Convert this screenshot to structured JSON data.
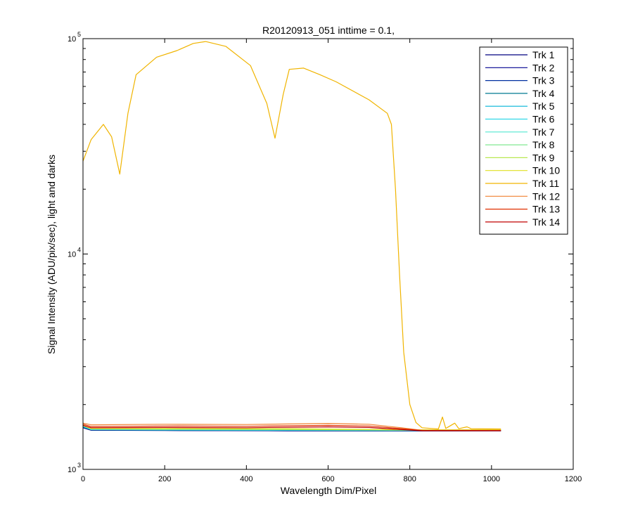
{
  "chart_data": {
    "type": "line",
    "title": "R20120913_051 inttime = 0.1,",
    "xlabel": "Wavelength Dim/Pixel",
    "ylabel": "Signal Intensity (ADU/pix/sec), light and darks",
    "xlim": [
      0,
      1200
    ],
    "ylim": [
      1000,
      100000
    ],
    "yscale": "log",
    "xticks": [
      0,
      200,
      400,
      600,
      800,
      1000,
      1200
    ],
    "yticks": [
      {
        "value": 1000,
        "base": "10",
        "exp": "3"
      },
      {
        "value": 10000,
        "base": "10",
        "exp": "4"
      },
      {
        "value": 100000,
        "base": "10",
        "exp": "5"
      }
    ],
    "grid": false,
    "legend_position": "top-right",
    "series": [
      {
        "name": "Trk 1",
        "color": "#000080",
        "points": [
          [
            0,
            1560
          ],
          [
            20,
            1520
          ],
          [
            200,
            1515
          ],
          [
            500,
            1510
          ],
          [
            800,
            1508
          ],
          [
            1023,
            1510
          ]
        ]
      },
      {
        "name": "Trk 2",
        "color": "#000090",
        "points": [
          [
            0,
            1565
          ],
          [
            20,
            1522
          ],
          [
            200,
            1518
          ],
          [
            500,
            1512
          ],
          [
            800,
            1510
          ],
          [
            1023,
            1512
          ]
        ]
      },
      {
        "name": "Trk 3",
        "color": "#0030a0",
        "points": [
          [
            0,
            1570
          ],
          [
            20,
            1525
          ],
          [
            200,
            1520
          ],
          [
            500,
            1515
          ],
          [
            800,
            1512
          ],
          [
            1023,
            1514
          ]
        ]
      },
      {
        "name": "Trk 4",
        "color": "#007890",
        "points": [
          [
            0,
            1575
          ],
          [
            20,
            1528
          ],
          [
            200,
            1522
          ],
          [
            500,
            1518
          ],
          [
            800,
            1514
          ],
          [
            1023,
            1516
          ]
        ]
      },
      {
        "name": "Trk 5",
        "color": "#00b4d8",
        "points": [
          [
            0,
            1580
          ],
          [
            20,
            1530
          ],
          [
            200,
            1525
          ],
          [
            500,
            1520
          ],
          [
            800,
            1516
          ],
          [
            1023,
            1518
          ]
        ]
      },
      {
        "name": "Trk 6",
        "color": "#30d8e8",
        "points": [
          [
            0,
            1585
          ],
          [
            20,
            1533
          ],
          [
            200,
            1528
          ],
          [
            500,
            1522
          ],
          [
            800,
            1518
          ],
          [
            1023,
            1520
          ]
        ]
      },
      {
        "name": "Trk 7",
        "color": "#50e8d0",
        "points": [
          [
            0,
            1590
          ],
          [
            20,
            1536
          ],
          [
            200,
            1530
          ],
          [
            500,
            1525
          ],
          [
            800,
            1520
          ],
          [
            1023,
            1522
          ]
        ]
      },
      {
        "name": "Trk 8",
        "color": "#80e890",
        "points": [
          [
            0,
            1595
          ],
          [
            20,
            1540
          ],
          [
            200,
            1535
          ],
          [
            500,
            1530
          ],
          [
            800,
            1522
          ],
          [
            1023,
            1524
          ]
        ]
      },
      {
        "name": "Trk 9",
        "color": "#b8e850",
        "points": [
          [
            0,
            1600
          ],
          [
            20,
            1545
          ],
          [
            200,
            1540
          ],
          [
            500,
            1535
          ],
          [
            800,
            1525
          ],
          [
            1023,
            1526
          ]
        ]
      },
      {
        "name": "Trk 10",
        "color": "#e0e020",
        "points": [
          [
            0,
            1605
          ],
          [
            20,
            1550
          ],
          [
            200,
            1548
          ],
          [
            500,
            1545
          ],
          [
            800,
            1528
          ],
          [
            1023,
            1528
          ]
        ]
      },
      {
        "name": "Trk 11",
        "color": "#f0b400",
        "points": [
          [
            0,
            27000
          ],
          [
            20,
            34000
          ],
          [
            50,
            40000
          ],
          [
            70,
            35000
          ],
          [
            90,
            23500
          ],
          [
            110,
            45000
          ],
          [
            130,
            68000
          ],
          [
            180,
            82000
          ],
          [
            230,
            88000
          ],
          [
            270,
            95000
          ],
          [
            300,
            97000
          ],
          [
            350,
            92000
          ],
          [
            410,
            75000
          ],
          [
            450,
            50000
          ],
          [
            470,
            34500
          ],
          [
            490,
            55000
          ],
          [
            505,
            72000
          ],
          [
            540,
            73000
          ],
          [
            580,
            68000
          ],
          [
            620,
            63000
          ],
          [
            700,
            52000
          ],
          [
            745,
            45000
          ],
          [
            755,
            40000
          ],
          [
            765,
            20000
          ],
          [
            775,
            8000
          ],
          [
            785,
            3500
          ],
          [
            800,
            2000
          ],
          [
            815,
            1650
          ],
          [
            830,
            1560
          ],
          [
            870,
            1540
          ],
          [
            880,
            1750
          ],
          [
            888,
            1550
          ],
          [
            910,
            1640
          ],
          [
            920,
            1545
          ],
          [
            940,
            1575
          ],
          [
            950,
            1545
          ],
          [
            1023,
            1540
          ]
        ]
      },
      {
        "name": "Trk 12",
        "color": "#f08030",
        "points": [
          [
            0,
            1640
          ],
          [
            20,
            1610
          ],
          [
            200,
            1620
          ],
          [
            400,
            1615
          ],
          [
            600,
            1635
          ],
          [
            700,
            1620
          ],
          [
            780,
            1560
          ],
          [
            830,
            1520
          ],
          [
            1023,
            1520
          ]
        ]
      },
      {
        "name": "Trk 13",
        "color": "#e03000",
        "points": [
          [
            0,
            1620
          ],
          [
            20,
            1580
          ],
          [
            200,
            1590
          ],
          [
            400,
            1585
          ],
          [
            600,
            1600
          ],
          [
            700,
            1590
          ],
          [
            780,
            1545
          ],
          [
            830,
            1515
          ],
          [
            1023,
            1515
          ]
        ]
      },
      {
        "name": "Trk 14",
        "color": "#c00000",
        "points": [
          [
            0,
            1600
          ],
          [
            20,
            1560
          ],
          [
            200,
            1565
          ],
          [
            400,
            1560
          ],
          [
            600,
            1575
          ],
          [
            700,
            1565
          ],
          [
            780,
            1530
          ],
          [
            830,
            1512
          ],
          [
            1023,
            1512
          ]
        ]
      }
    ]
  }
}
